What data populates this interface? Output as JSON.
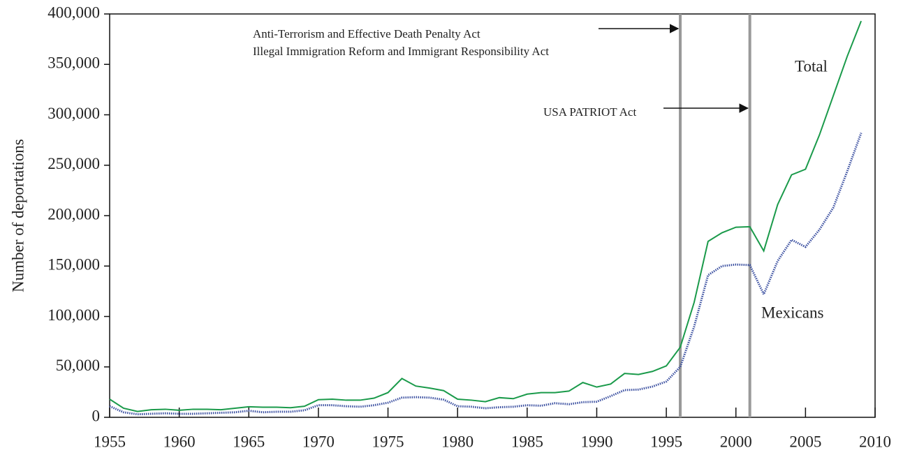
{
  "chart_data": {
    "type": "line",
    "y_label": "Number of deportations",
    "x": [
      1955,
      1956,
      1957,
      1958,
      1959,
      1960,
      1961,
      1962,
      1963,
      1964,
      1965,
      1966,
      1967,
      1968,
      1969,
      1970,
      1971,
      1972,
      1973,
      1974,
      1975,
      1976,
      1977,
      1978,
      1979,
      1980,
      1981,
      1982,
      1983,
      1984,
      1985,
      1986,
      1987,
      1988,
      1989,
      1990,
      1991,
      1992,
      1993,
      1994,
      1995,
      1996,
      1997,
      1998,
      1999,
      2000,
      2001,
      2002,
      2003,
      2004,
      2005,
      2006,
      2007,
      2008,
      2009
    ],
    "series": [
      {
        "name": "Total",
        "color": "#1a9a4a",
        "style": "solid",
        "values": [
          18000,
          9000,
          5800,
          7500,
          8000,
          7000,
          8000,
          8000,
          7500,
          9000,
          10500,
          10000,
          10000,
          9500,
          11000,
          17500,
          18000,
          17000,
          17000,
          19000,
          24500,
          38500,
          31000,
          29000,
          26500,
          18000,
          17000,
          15500,
          19500,
          18500,
          23000,
          24500,
          24500,
          26000,
          34500,
          30000,
          33000,
          43500,
          42500,
          45500,
          51000,
          69500,
          114000,
          174500,
          183000,
          188500,
          189000,
          165000,
          211000,
          240500,
          246000,
          280000,
          319000,
          358000,
          393000
        ]
      },
      {
        "name": "Mexicans",
        "color": "#3a4fa0",
        "style": "dotted",
        "values": [
          11000,
          5000,
          3000,
          3500,
          4000,
          3500,
          3500,
          4000,
          4500,
          5000,
          6500,
          5000,
          5500,
          5500,
          7000,
          12000,
          12000,
          11000,
          10500,
          12000,
          14500,
          19500,
          20000,
          19500,
          17500,
          11000,
          10500,
          9000,
          10000,
          10500,
          12000,
          11500,
          14000,
          13000,
          15000,
          15500,
          21000,
          27000,
          27500,
          30500,
          35500,
          50000,
          90000,
          141000,
          150000,
          151500,
          151000,
          122000,
          155000,
          176000,
          169000,
          186000,
          208000,
          244000,
          282000
        ]
      }
    ],
    "event_lines": [
      {
        "x": 1996,
        "labels": [
          "Anti-Terrorism and Effective Death Penalty Act",
          "Illegal Immigration Reform and Immigrant Responsibility Act"
        ]
      },
      {
        "x": 2001,
        "labels": [
          "USA PATRIOT Act"
        ]
      }
    ],
    "event_color": "#999999",
    "xlim": [
      1955,
      2010
    ],
    "xticks": [
      1955,
      1960,
      1965,
      1970,
      1975,
      1980,
      1985,
      1990,
      1995,
      2000,
      2005,
      2010
    ],
    "ylim": [
      0,
      400000
    ],
    "yticks": [
      0,
      {
        "value": 50000,
        "label": "50,000"
      },
      {
        "value": 100000,
        "label": "100,000"
      },
      {
        "value": 150000,
        "label": "150,000"
      },
      {
        "value": 200000,
        "label": "200,000"
      },
      {
        "value": 250000,
        "label": "250,000"
      },
      {
        "value": 300000,
        "label": "300,000"
      },
      {
        "value": 350000,
        "label": "350,000"
      },
      {
        "value": 400000,
        "label": "400,000"
      }
    ],
    "grid": false
  }
}
